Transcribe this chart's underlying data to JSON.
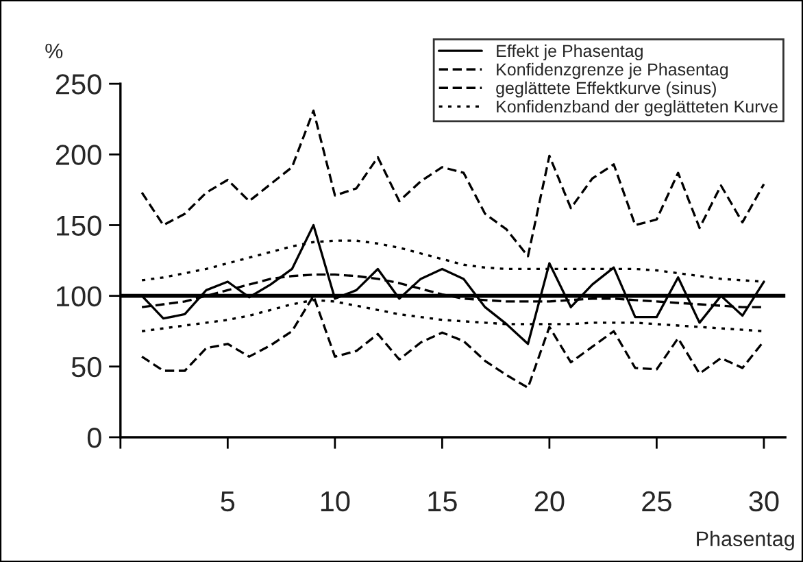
{
  "chart_data": {
    "type": "line",
    "ylabel": "%",
    "xlabel": "Phasentag",
    "x": [
      1,
      2,
      3,
      4,
      5,
      6,
      7,
      8,
      9,
      10,
      11,
      12,
      13,
      14,
      15,
      16,
      17,
      18,
      19,
      20,
      21,
      22,
      23,
      24,
      25,
      26,
      27,
      28,
      29,
      30
    ],
    "series": [
      {
        "name": "Effekt je Phasentag",
        "color": "#000000",
        "line_style": "solid",
        "values": [
          100,
          84,
          87,
          104,
          110,
          99,
          108,
          119,
          150,
          98,
          104,
          119,
          98,
          112,
          119,
          112,
          92,
          80,
          66,
          123,
          92,
          108,
          120,
          85,
          85,
          113,
          81,
          100,
          86,
          110
        ]
      },
      {
        "name": "Konfidenzgrenze je Phasentag",
        "color": "#000000",
        "line_style": "dashed",
        "values": [
          173,
          150,
          158,
          173,
          182,
          167,
          179,
          191,
          231,
          171,
          176,
          198,
          167,
          181,
          191,
          187,
          158,
          147,
          128,
          199,
          162,
          183,
          193,
          150,
          154,
          187,
          148,
          178,
          152,
          179
        ]
      },
      {
        "color": "#000000",
        "line_style": "dashed",
        "values": [
          57,
          47,
          47,
          63,
          66,
          57,
          65,
          75,
          100,
          57,
          61,
          73,
          55,
          67,
          74,
          68,
          54,
          44,
          35,
          78,
          53,
          64,
          75,
          49,
          48,
          70,
          45,
          56,
          49,
          68
        ]
      },
      {
        "name": "geglättete Effektkurve (sinus)",
        "color": "#000000",
        "line_style": "dashed",
        "values": [
          92,
          94,
          96,
          100,
          104,
          108,
          112,
          114,
          115,
          115,
          114,
          112,
          109,
          105,
          101,
          98,
          97,
          96,
          96,
          96,
          97,
          98,
          98,
          97,
          96,
          95,
          94,
          93,
          92,
          92
        ]
      },
      {
        "name": "Konfidenzband der geglätteten Kurve",
        "color": "#000000",
        "line_style": "dotted",
        "values": [
          111,
          113,
          116,
          119,
          123,
          127,
          131,
          135,
          138,
          139,
          139,
          137,
          134,
          130,
          126,
          122,
          120,
          119,
          119,
          119,
          119,
          119,
          119,
          119,
          118,
          116,
          114,
          112,
          111,
          110
        ]
      },
      {
        "color": "#000000",
        "line_style": "dotted",
        "values": [
          75,
          77,
          79,
          81,
          83,
          86,
          90,
          94,
          97,
          96,
          93,
          90,
          87,
          85,
          83,
          82,
          81,
          80,
          80,
          80,
          80,
          81,
          81,
          81,
          80,
          79,
          78,
          77,
          76,
          75
        ]
      }
    ],
    "ref_lines": [
      {
        "axis": "y",
        "value": 100,
        "color": "#000000",
        "line_style": "solid"
      }
    ],
    "xlim": [
      0,
      31
    ],
    "xticks": [
      {
        "value": 0,
        "label": null
      },
      5,
      10,
      15,
      20,
      25,
      30
    ],
    "ylim": [
      0,
      250
    ],
    "yticks": [
      0,
      50,
      100,
      150,
      200,
      250
    ],
    "grid": false,
    "legend": "top right",
    "marker": "none"
  }
}
